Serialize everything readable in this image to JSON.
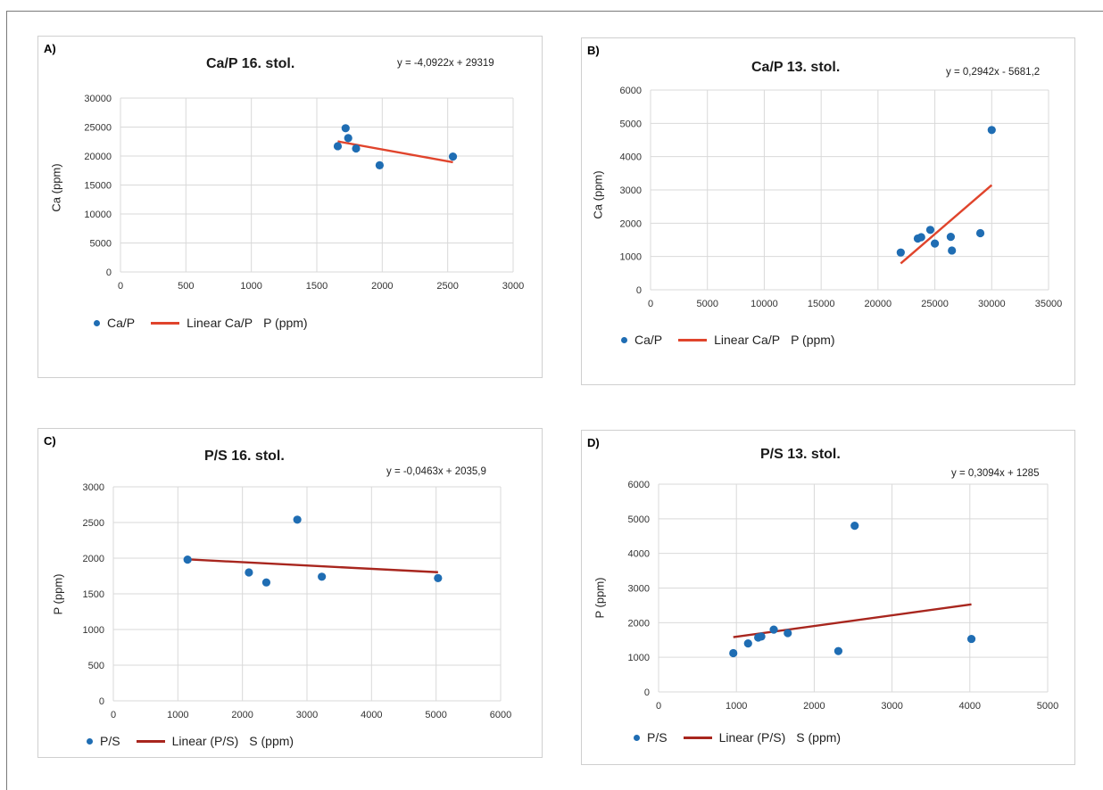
{
  "colors": {
    "point": "#1f6db3",
    "line_red": "#e0442c",
    "line_dark": "#a8261e",
    "grid": "#d9d9d9"
  },
  "chart_data": [
    {
      "id": "A",
      "type": "scatter",
      "panel_label": "A)",
      "title": "Ca/P 16. stol.",
      "xlabel": "P (ppm)",
      "ylabel": "Ca (ppm)",
      "xlim": [
        0,
        3000
      ],
      "ylim": [
        0,
        30000
      ],
      "xticks": [
        "0",
        "500",
        "1000",
        "1500",
        "2000",
        "2500",
        "3000"
      ],
      "yticks": [
        "0",
        "5000",
        "10000",
        "15000",
        "20000",
        "25000",
        "30000"
      ],
      "series_name": "Ca/P",
      "trend_name": "Linear Ca/P",
      "equation": "y = -4,0922x + 29319",
      "points": [
        [
          1660,
          21700
        ],
        [
          1720,
          24800
        ],
        [
          1740,
          23100
        ],
        [
          1800,
          21300
        ],
        [
          1980,
          18400
        ],
        [
          2540,
          19900
        ]
      ],
      "trend": [
        [
          1660,
          22526
        ],
        [
          2540,
          18925
        ]
      ]
    },
    {
      "id": "B",
      "type": "scatter",
      "panel_label": "B)",
      "title": "Ca/P 13. stol.",
      "xlabel": "P (ppm)",
      "ylabel": "Ca (ppm)",
      "xlim": [
        0,
        35000
      ],
      "ylim": [
        0,
        6000
      ],
      "xticks": [
        "0",
        "5000",
        "10000",
        "15000",
        "20000",
        "25000",
        "30000",
        "35000"
      ],
      "yticks": [
        "0",
        "1000",
        "2000",
        "3000",
        "4000",
        "5000",
        "6000"
      ],
      "series_name": "Ca/P",
      "trend_name": "Linear Ca/P",
      "equation": "y = 0,2942x - 5681,2",
      "points": [
        [
          22000,
          1120
        ],
        [
          23500,
          1540
        ],
        [
          23800,
          1580
        ],
        [
          24600,
          1800
        ],
        [
          25000,
          1390
        ],
        [
          26400,
          1590
        ],
        [
          26500,
          1180
        ],
        [
          29000,
          1700
        ],
        [
          30000,
          4800
        ]
      ],
      "trend": [
        [
          22000,
          791
        ],
        [
          30000,
          3145
        ]
      ]
    },
    {
      "id": "C",
      "type": "scatter",
      "panel_label": "C)",
      "title": "P/S 16. stol.",
      "xlabel": "S (ppm)",
      "ylabel": "P (ppm)",
      "xlim": [
        0,
        6000
      ],
      "ylim": [
        0,
        3000
      ],
      "xticks": [
        "0",
        "1000",
        "2000",
        "3000",
        "4000",
        "5000",
        "6000"
      ],
      "yticks": [
        "0",
        "500",
        "1000",
        "1500",
        "2000",
        "2500",
        "3000"
      ],
      "series_name": "P/S",
      "trend_name": "Linear (P/S)",
      "equation": "y = -0,0463x + 2035,9",
      "points": [
        [
          1150,
          1980
        ],
        [
          2100,
          1800
        ],
        [
          2370,
          1660
        ],
        [
          2850,
          2540
        ],
        [
          3230,
          1740
        ],
        [
          5030,
          1720
        ]
      ],
      "trend": [
        [
          1150,
          1983
        ],
        [
          5030,
          1803
        ]
      ]
    },
    {
      "id": "D",
      "type": "scatter",
      "panel_label": "D)",
      "title": "P/S 13. stol.",
      "xlabel": "S (ppm)",
      "ylabel": "P (ppm)",
      "xlim": [
        0,
        5000
      ],
      "ylim": [
        0,
        6000
      ],
      "xticks": [
        "0",
        "1000",
        "2000",
        "3000",
        "4000",
        "5000"
      ],
      "yticks": [
        "0",
        "1000",
        "2000",
        "3000",
        "4000",
        "5000",
        "6000"
      ],
      "series_name": "P/S",
      "trend_name": "Linear (P/S)",
      "equation": "y = 0,3094x + 1285",
      "points": [
        [
          960,
          1120
        ],
        [
          1150,
          1400
        ],
        [
          1280,
          1570
        ],
        [
          1320,
          1600
        ],
        [
          1480,
          1800
        ],
        [
          1660,
          1700
        ],
        [
          2310,
          1180
        ],
        [
          2520,
          4800
        ],
        [
          4020,
          1530
        ]
      ],
      "trend": [
        [
          960,
          1582
        ],
        [
          4020,
          2529
        ]
      ]
    }
  ]
}
